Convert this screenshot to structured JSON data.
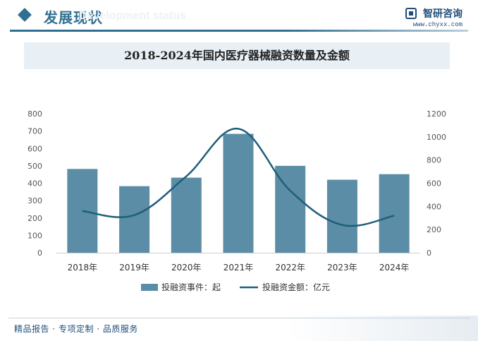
{
  "header": {
    "section_title": "发展现状",
    "section_subtitle": "Development status",
    "brand_name": "智研咨询",
    "brand_url": "www.chyxx.com"
  },
  "chart_data": {
    "type": "bar+line",
    "title": "2018-2024年国内医疗器械融资数量及金额",
    "categories": [
      "2018年",
      "2019年",
      "2020年",
      "2021年",
      "2022年",
      "2023年",
      "2024年"
    ],
    "series": [
      {
        "name": "投融资事件：起",
        "type": "bar",
        "axis": "left",
        "color": "#5b8ea6",
        "values": [
          482,
          383,
          432,
          684,
          500,
          420,
          452
        ]
      },
      {
        "name": "投融资金额：亿元",
        "type": "line",
        "axis": "right",
        "color": "#1f5e7b",
        "values": [
          360,
          325,
          660,
          1070,
          535,
          240,
          320
        ]
      }
    ],
    "left_axis": {
      "min": 0,
      "max": 800,
      "ticks": [
        0,
        100,
        200,
        300,
        400,
        500,
        600,
        700,
        800
      ]
    },
    "right_axis": {
      "min": 0,
      "max": 1200,
      "ticks": [
        0,
        200,
        400,
        600,
        800,
        1000,
        1200
      ]
    },
    "legend_position": "bottom",
    "grid": false
  },
  "footer": {
    "text": "精品报告 · 专项定制 · 品质服务"
  }
}
